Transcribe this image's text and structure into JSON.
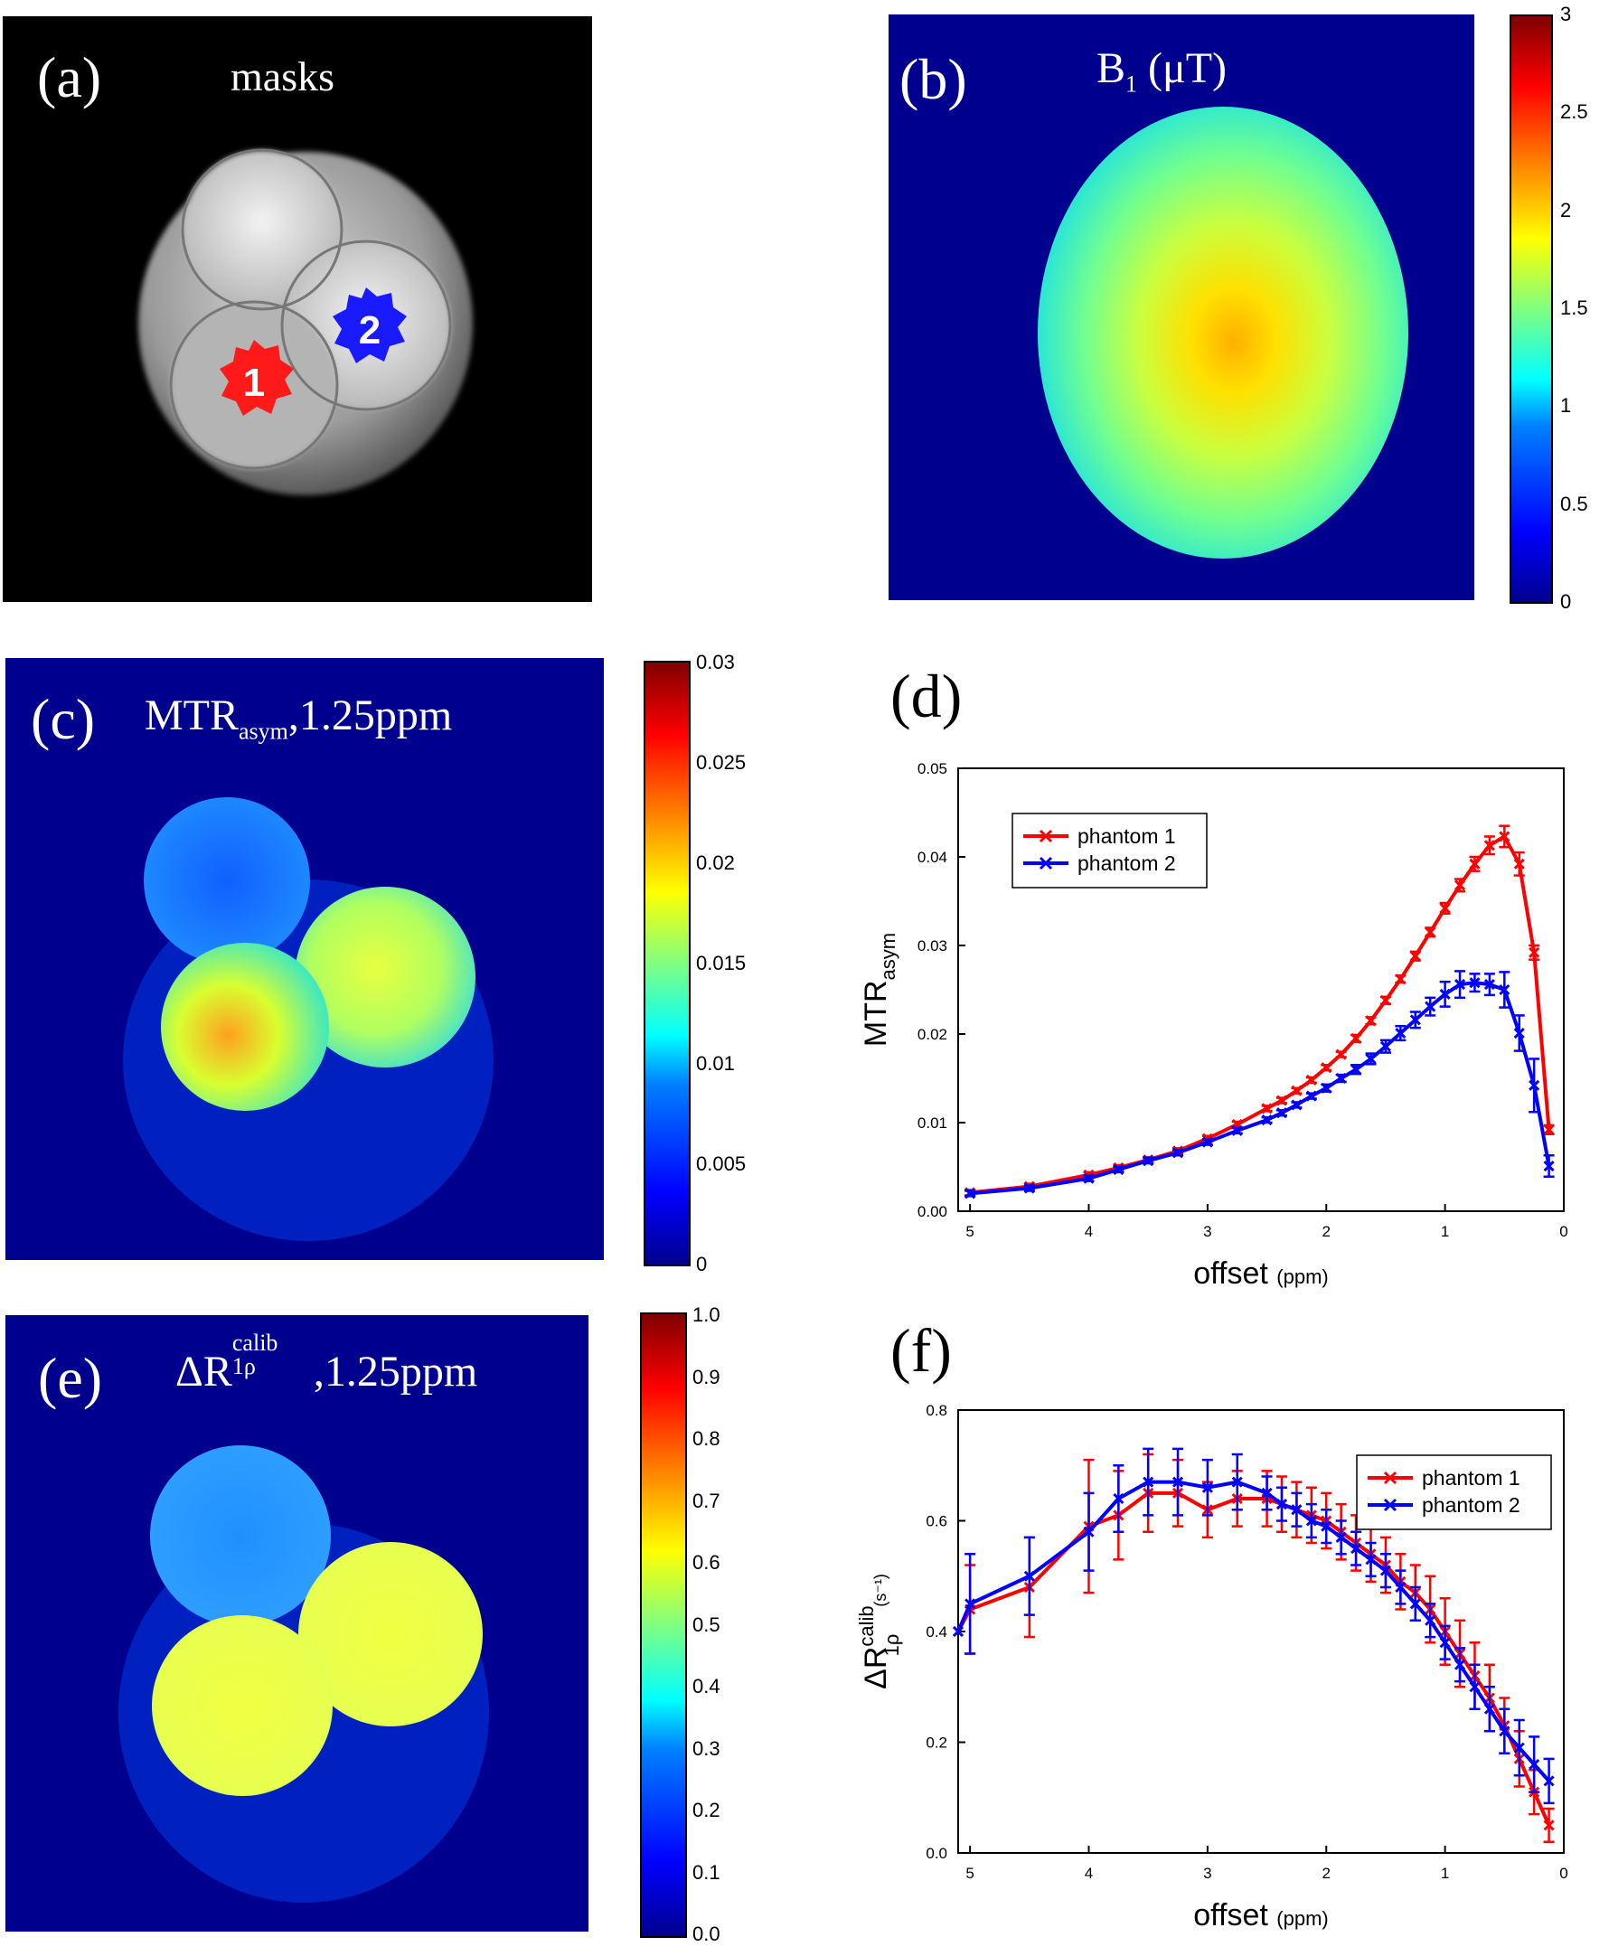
{
  "panels": {
    "a": {
      "label": "(a)",
      "title": "masks",
      "mask1": "1",
      "mask2": "2",
      "mask1_color": "#ff1a1a",
      "mask2_color": "#1a1aff"
    },
    "b": {
      "label": "(b)",
      "title_main": "B",
      "title_sub": "1",
      "title_unit": " (μT)",
      "colorbar_ticks": [
        "3",
        "2.5",
        "2",
        "1.5",
        "1",
        "0.5",
        "0"
      ]
    },
    "c": {
      "label": "(c)",
      "title_main": "MTR",
      "title_sub": "asym",
      "title_rest": ",1.25ppm",
      "colorbar_ticks": [
        "0.03",
        "0.025",
        "0.02",
        "0.015",
        "0.01",
        "0.005",
        "0"
      ]
    },
    "d": {
      "label": "(d)"
    },
    "e": {
      "label": "(e)",
      "title_main": "ΔR",
      "title_sup": "calib",
      "title_sub": "1ρ",
      "title_rest": ",1.25ppm",
      "colorbar_ticks": [
        "1.0",
        "0.9",
        "0.8",
        "0.7",
        "0.6",
        "0.5",
        "0.4",
        "0.3",
        "0.2",
        "0.1",
        "0.0"
      ]
    },
    "f": {
      "label": "(f)"
    }
  },
  "chart_data": [
    {
      "id": "d",
      "type": "line",
      "xlabel": "offset",
      "xlabel_unit": "(ppm)",
      "ylabel_main": "MTR",
      "ylabel_sub": "asym",
      "xlim": [
        5.1,
        0
      ],
      "ylim": [
        0,
        0.05
      ],
      "xticks": [
        5,
        4,
        3,
        2,
        1,
        0
      ],
      "yticks": [
        "0.00",
        "0.01",
        "0.02",
        "0.03",
        "0.04",
        "0.05"
      ],
      "yticks_values": [
        0,
        0.01,
        0.02,
        0.03,
        0.04,
        0.05
      ],
      "legend_position": "top-left",
      "series": [
        {
          "name": "phantom 1",
          "color": "#ff0000",
          "x": [
            5.0,
            4.5,
            4.0,
            3.75,
            3.5,
            3.25,
            3.0,
            2.75,
            2.5,
            2.375,
            2.25,
            2.125,
            2.0,
            1.875,
            1.75,
            1.625,
            1.5,
            1.375,
            1.25,
            1.125,
            1.0,
            0.875,
            0.75,
            0.625,
            0.5,
            0.375,
            0.25,
            0.125
          ],
          "y": [
            0.0021,
            0.0028,
            0.0041,
            0.0049,
            0.0058,
            0.0068,
            0.0082,
            0.0098,
            0.0116,
            0.0125,
            0.0136,
            0.0148,
            0.0162,
            0.0177,
            0.0195,
            0.0215,
            0.0238,
            0.0262,
            0.0288,
            0.0315,
            0.0342,
            0.0368,
            0.0392,
            0.0413,
            0.0423,
            0.0392,
            0.0292,
            0.0092
          ],
          "err": [
            0.0003,
            0.0003,
            0.0003,
            0.0003,
            0.0003,
            0.0003,
            0.0003,
            0.0003,
            0.0003,
            0.0003,
            0.0003,
            0.0003,
            0.0003,
            0.0003,
            0.0004,
            0.0004,
            0.0004,
            0.0004,
            0.0005,
            0.0005,
            0.0006,
            0.0007,
            0.0008,
            0.001,
            0.0012,
            0.0013,
            0.0008,
            0.0005
          ]
        },
        {
          "name": "phantom 2",
          "color": "#0000ff",
          "x": [
            5.0,
            4.5,
            4.0,
            3.75,
            3.5,
            3.25,
            3.0,
            2.75,
            2.5,
            2.375,
            2.25,
            2.125,
            2.0,
            1.875,
            1.75,
            1.625,
            1.5,
            1.375,
            1.25,
            1.125,
            1.0,
            0.875,
            0.75,
            0.625,
            0.5,
            0.375,
            0.25,
            0.125
          ],
          "y": [
            0.002,
            0.0026,
            0.0037,
            0.0047,
            0.0057,
            0.0066,
            0.0078,
            0.0091,
            0.0103,
            0.0111,
            0.012,
            0.013,
            0.0139,
            0.015,
            0.016,
            0.0172,
            0.0186,
            0.0201,
            0.0216,
            0.0231,
            0.0245,
            0.0256,
            0.0258,
            0.0256,
            0.025,
            0.0201,
            0.0142,
            0.0051
          ],
          "err": [
            0.0003,
            0.0003,
            0.0003,
            0.0003,
            0.0003,
            0.0003,
            0.0003,
            0.0003,
            0.0003,
            0.0003,
            0.0003,
            0.0003,
            0.0004,
            0.0004,
            0.0005,
            0.0006,
            0.0007,
            0.0008,
            0.0009,
            0.001,
            0.0014,
            0.0015,
            0.001,
            0.0012,
            0.002,
            0.002,
            0.003,
            0.0012
          ]
        }
      ]
    },
    {
      "id": "f",
      "type": "line",
      "xlabel": "offset",
      "xlabel_unit": "(ppm)",
      "ylabel_main": "ΔR",
      "ylabel_sup": "calib",
      "ylabel_sub": "1ρ",
      "ylabel_unit": "(s⁻¹)",
      "xlim": [
        5.1,
        0
      ],
      "ylim": [
        0,
        0.8
      ],
      "xticks": [
        5,
        4,
        3,
        2,
        1,
        0
      ],
      "yticks": [
        "0.0",
        "0.2",
        "0.4",
        "0.6",
        "0.8"
      ],
      "yticks_values": [
        0,
        0.2,
        0.4,
        0.6,
        0.8
      ],
      "legend_position": "top-right",
      "series": [
        {
          "name": "phantom 1",
          "color": "#ff0000",
          "x": [
            5.1,
            5.0,
            4.5,
            4.0,
            3.75,
            3.5,
            3.25,
            3.0,
            2.75,
            2.5,
            2.375,
            2.25,
            2.125,
            2.0,
            1.875,
            1.75,
            1.625,
            1.5,
            1.375,
            1.25,
            1.125,
            1.0,
            0.875,
            0.75,
            0.625,
            0.5,
            0.375,
            0.25,
            0.125
          ],
          "y": [
            0.4,
            0.44,
            0.48,
            0.59,
            0.61,
            0.65,
            0.65,
            0.62,
            0.64,
            0.64,
            0.63,
            0.62,
            0.61,
            0.6,
            0.58,
            0.56,
            0.54,
            0.52,
            0.49,
            0.47,
            0.44,
            0.4,
            0.36,
            0.32,
            0.28,
            0.23,
            0.17,
            0.11,
            0.05
          ],
          "err": [
            0.0,
            0.08,
            0.09,
            0.12,
            0.08,
            0.07,
            0.06,
            0.05,
            0.05,
            0.05,
            0.05,
            0.05,
            0.05,
            0.05,
            0.05,
            0.05,
            0.05,
            0.05,
            0.05,
            0.05,
            0.06,
            0.06,
            0.06,
            0.06,
            0.06,
            0.05,
            0.05,
            0.04,
            0.03
          ]
        },
        {
          "name": "phantom 2",
          "color": "#0000ff",
          "x": [
            5.1,
            5.0,
            4.5,
            4.0,
            3.75,
            3.5,
            3.25,
            3.0,
            2.75,
            2.5,
            2.375,
            2.25,
            2.125,
            2.0,
            1.875,
            1.75,
            1.625,
            1.5,
            1.375,
            1.25,
            1.125,
            1.0,
            0.875,
            0.75,
            0.625,
            0.5,
            0.375,
            0.25,
            0.125
          ],
          "y": [
            0.4,
            0.45,
            0.5,
            0.58,
            0.64,
            0.67,
            0.67,
            0.66,
            0.67,
            0.65,
            0.63,
            0.62,
            0.6,
            0.59,
            0.57,
            0.55,
            0.53,
            0.51,
            0.48,
            0.45,
            0.42,
            0.38,
            0.34,
            0.3,
            0.26,
            0.22,
            0.19,
            0.16,
            0.13
          ],
          "err": [
            0.0,
            0.09,
            0.07,
            0.07,
            0.06,
            0.06,
            0.06,
            0.05,
            0.05,
            0.03,
            0.03,
            0.03,
            0.03,
            0.03,
            0.03,
            0.03,
            0.03,
            0.03,
            0.03,
            0.03,
            0.03,
            0.03,
            0.03,
            0.04,
            0.04,
            0.04,
            0.05,
            0.05,
            0.04
          ]
        }
      ]
    }
  ]
}
